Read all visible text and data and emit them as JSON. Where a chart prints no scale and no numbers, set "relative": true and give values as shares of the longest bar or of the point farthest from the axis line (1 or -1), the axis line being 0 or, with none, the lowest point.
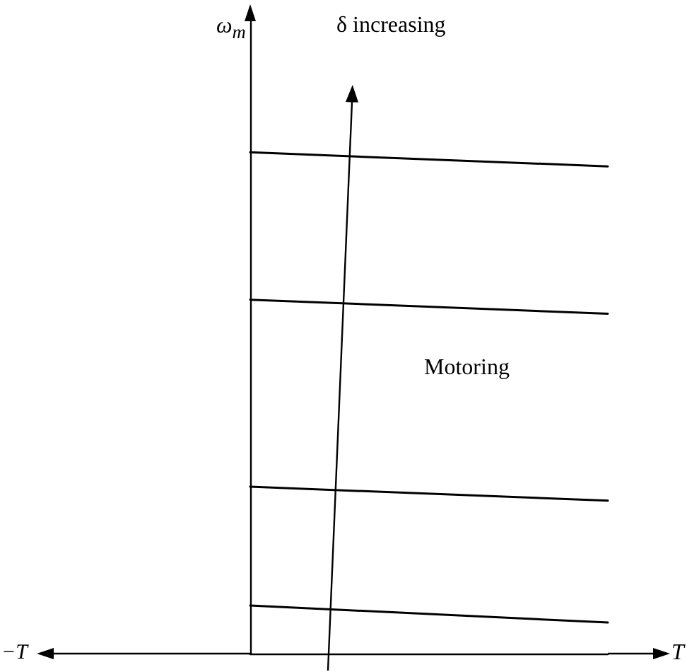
{
  "chart_data": {
    "type": "line",
    "relative": true,
    "categories": [
      null,
      null
    ],
    "xlabel": "T",
    "ylabel": "ω$_{m}$",
    "annotations": [
      "−T",
      "δ increasing",
      "Motoring"
    ],
    "marker": "none",
    "line_style": "solid",
    "grid": false,
    "series": [
      {
        "color": "#000000",
        "values": [
          1,
          0.972
        ]
      },
      {
        "color": "#000000",
        "values": [
          0.706,
          0.678
        ]
      },
      {
        "color": "#000000",
        "values": [
          0.333,
          0.305
        ]
      },
      {
        "color": "#000000",
        "values": [
          0.096,
          0.062
        ]
      }
    ]
  }
}
